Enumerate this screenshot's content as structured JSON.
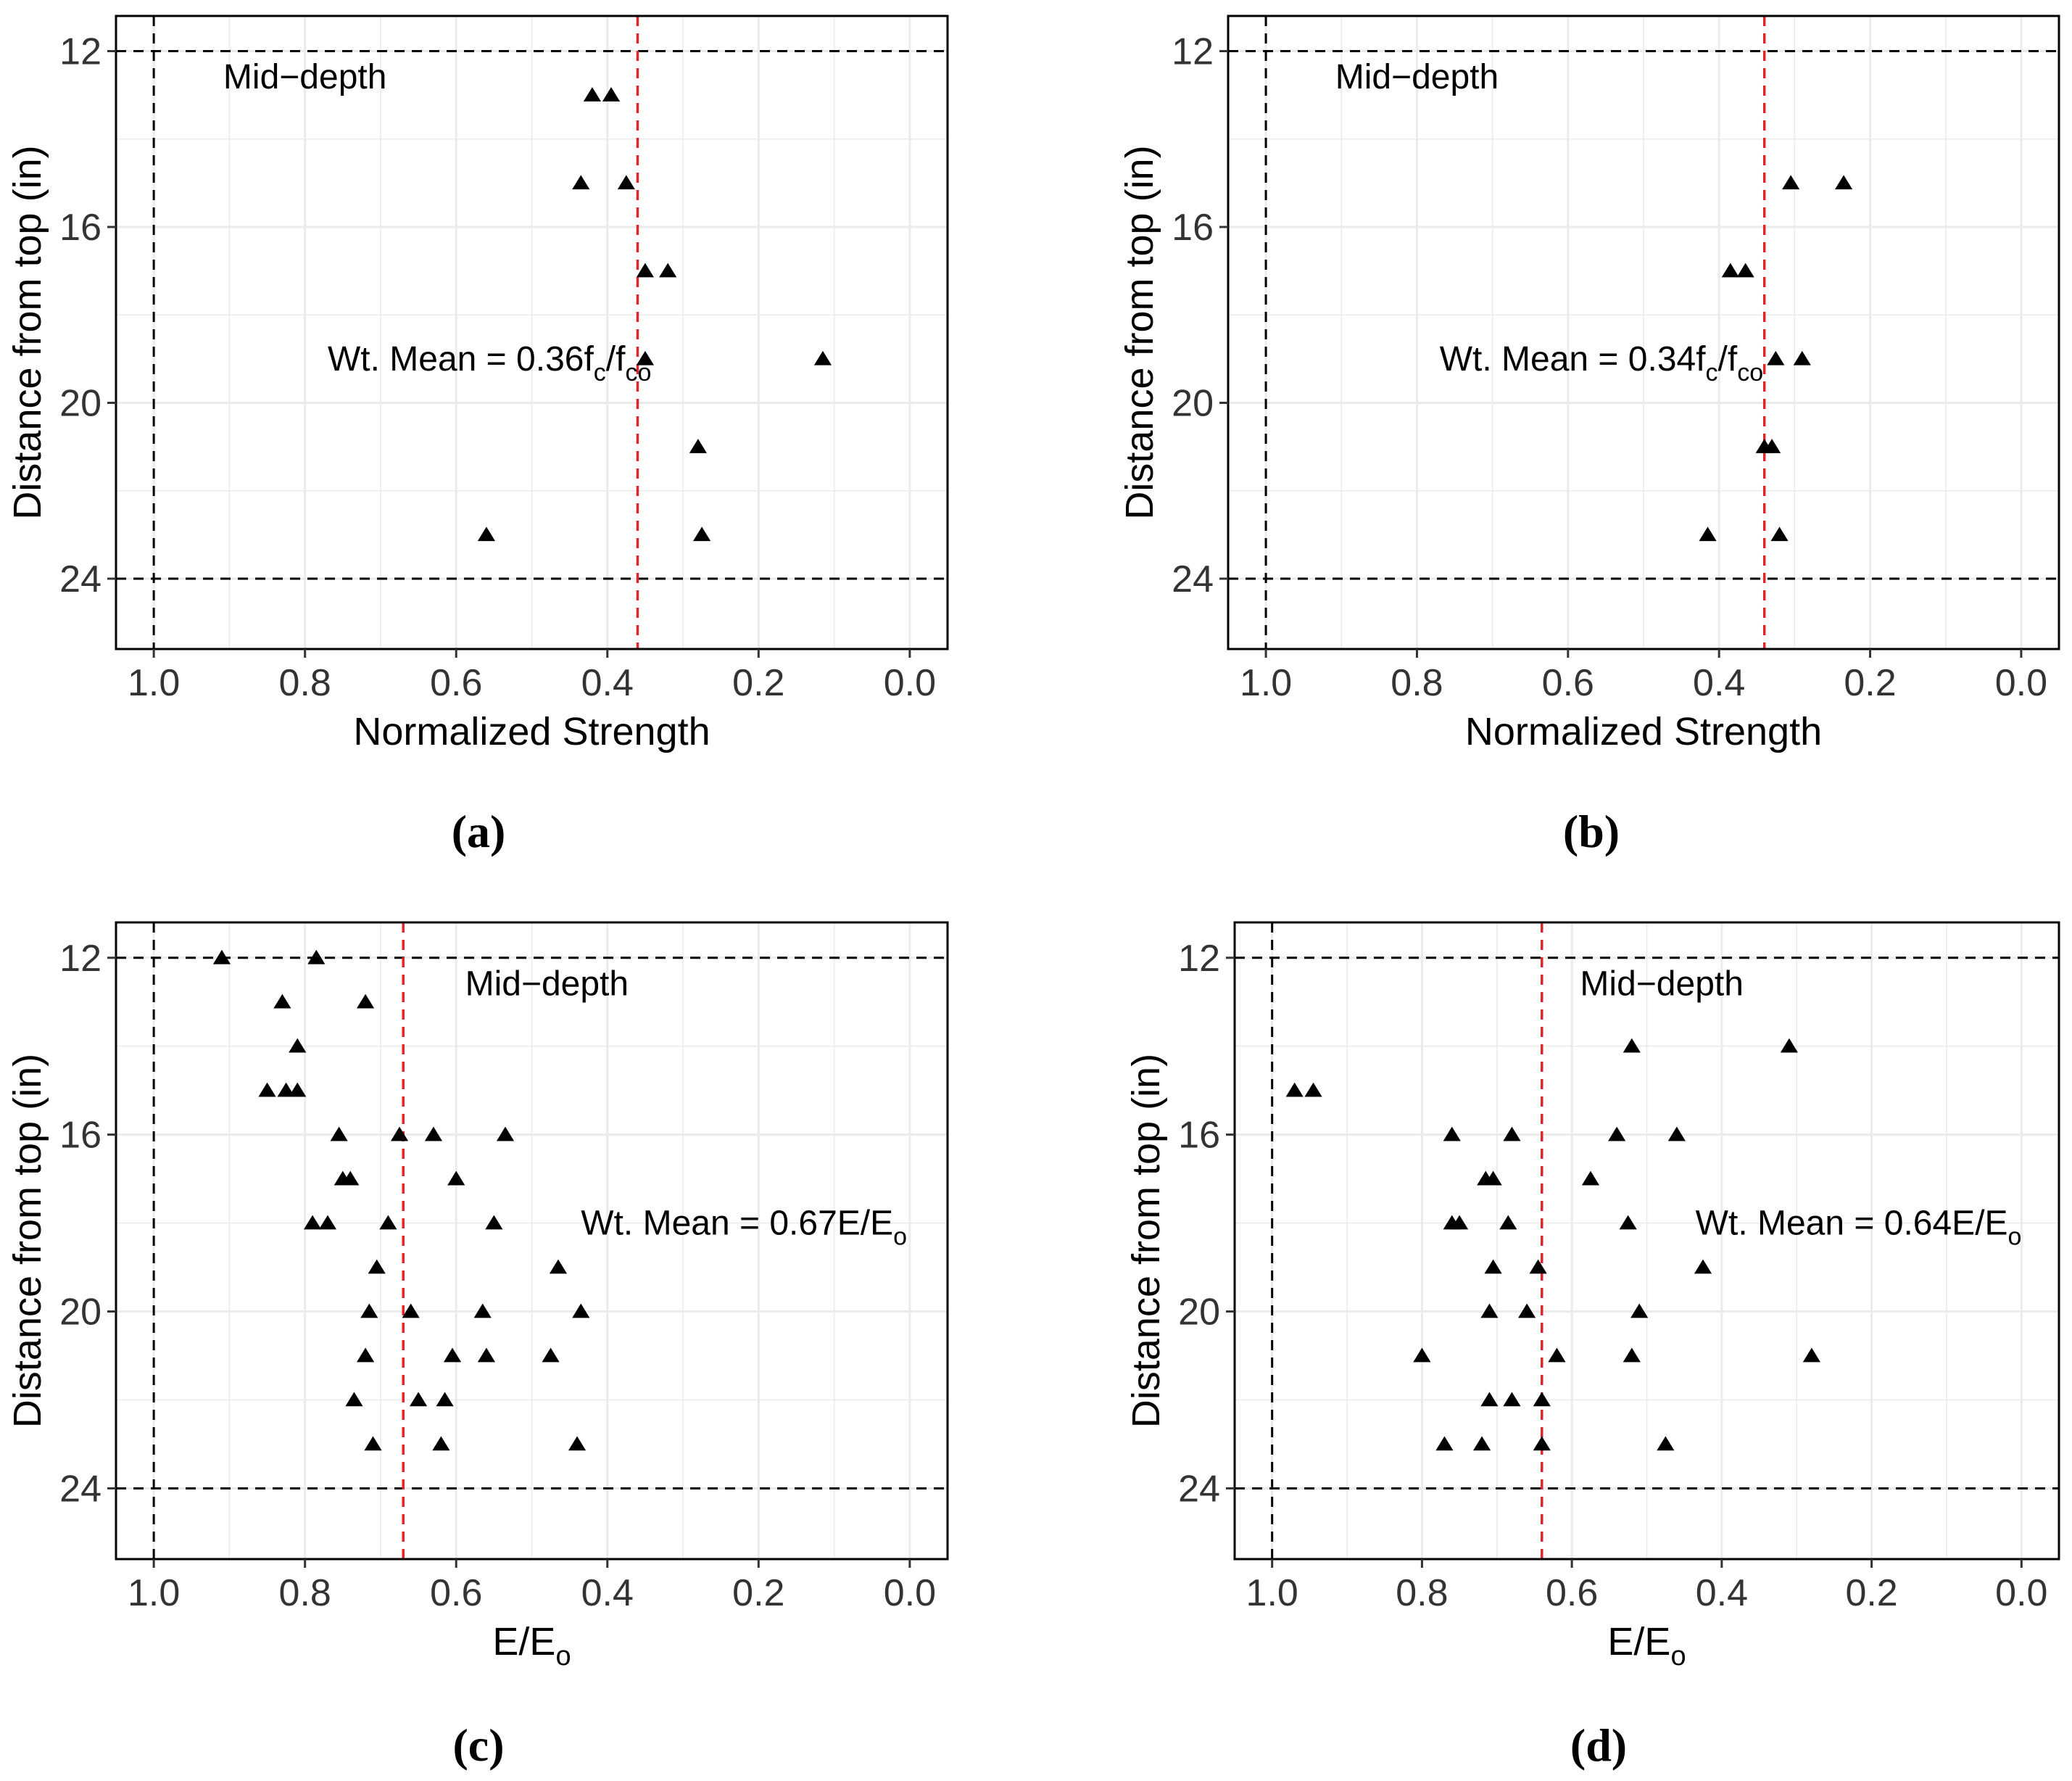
{
  "chart_data": [
    {
      "type": "scatter",
      "panel_label": "(a)",
      "xlabel": "Normalized Strength",
      "ylabel": "Distance from top (in)",
      "xlim": [
        1.05,
        -0.05
      ],
      "ylim": [
        25.6,
        11.2
      ],
      "x_reversed": true,
      "y_reversed": true,
      "x_ticks": [
        "1.0",
        "0.8",
        "0.6",
        "0.4",
        "0.2",
        "0.0"
      ],
      "x_tick_values": [
        1.0,
        0.8,
        0.6,
        0.4,
        0.2,
        0.0
      ],
      "y_ticks": [
        "12",
        "16",
        "20",
        "24"
      ],
      "y_tick_values": [
        12,
        16,
        20,
        24
      ],
      "grid": true,
      "marker": "triangle",
      "reference_lines": {
        "vertical": [
          1.0
        ],
        "horizontal": [
          12,
          24
        ]
      },
      "mean_line": 0.36,
      "mean_color": "#e0262b",
      "annotations": {
        "mid_depth": {
          "text": "Mid−depth",
          "x": 0.8,
          "y": 12.55
        },
        "mean": {
          "prefix": "Wt. Mean = 0.36f",
          "sub1": "c",
          "sep": "/f",
          "sub2": "co",
          "x": 0.77,
          "y": 19.0
        }
      },
      "points": [
        {
          "x": 0.42,
          "y": 13
        },
        {
          "x": 0.395,
          "y": 13
        },
        {
          "x": 0.435,
          "y": 15
        },
        {
          "x": 0.375,
          "y": 15
        },
        {
          "x": 0.35,
          "y": 17
        },
        {
          "x": 0.32,
          "y": 17
        },
        {
          "x": 0.35,
          "y": 19
        },
        {
          "x": 0.115,
          "y": 19
        },
        {
          "x": 0.28,
          "y": 21
        },
        {
          "x": 0.56,
          "y": 23
        },
        {
          "x": 0.275,
          "y": 23
        }
      ]
    },
    {
      "type": "scatter",
      "panel_label": "(b)",
      "xlabel": "Normalized Strength",
      "ylabel": "Distance from top (in)",
      "xlim": [
        1.05,
        -0.05
      ],
      "ylim": [
        25.6,
        11.2
      ],
      "x_reversed": true,
      "y_reversed": true,
      "x_ticks": [
        "1.0",
        "0.8",
        "0.6",
        "0.4",
        "0.2",
        "0.0"
      ],
      "x_tick_values": [
        1.0,
        0.8,
        0.6,
        0.4,
        0.2,
        0.0
      ],
      "y_ticks": [
        "12",
        "16",
        "20",
        "24"
      ],
      "y_tick_values": [
        12,
        16,
        20,
        24
      ],
      "grid": true,
      "marker": "triangle",
      "reference_lines": {
        "vertical": [
          1.0
        ],
        "horizontal": [
          12,
          24
        ]
      },
      "mean_line": 0.34,
      "mean_color": "#e0262b",
      "annotations": {
        "mid_depth": {
          "text": "Mid−depth",
          "x": 0.8,
          "y": 12.55
        },
        "mean": {
          "prefix": "Wt. Mean = 0.34f",
          "sub1": "c",
          "sep": "/f",
          "sub2": "co",
          "x": 0.77,
          "y": 19.0
        }
      },
      "points": [
        {
          "x": 0.305,
          "y": 15
        },
        {
          "x": 0.235,
          "y": 15
        },
        {
          "x": 0.385,
          "y": 17
        },
        {
          "x": 0.365,
          "y": 17
        },
        {
          "x": 0.325,
          "y": 19
        },
        {
          "x": 0.29,
          "y": 19
        },
        {
          "x": 0.34,
          "y": 21
        },
        {
          "x": 0.33,
          "y": 21
        },
        {
          "x": 0.415,
          "y": 23
        },
        {
          "x": 0.32,
          "y": 23
        }
      ]
    },
    {
      "type": "scatter",
      "panel_label": "(c)",
      "xlabel": "E/E",
      "xlabel_sub": "o",
      "ylabel": "Distance from top (in)",
      "xlim": [
        1.05,
        -0.05
      ],
      "ylim": [
        25.6,
        11.2
      ],
      "x_reversed": true,
      "y_reversed": true,
      "x_ticks": [
        "1.0",
        "0.8",
        "0.6",
        "0.4",
        "0.2",
        "0.0"
      ],
      "x_tick_values": [
        1.0,
        0.8,
        0.6,
        0.4,
        0.2,
        0.0
      ],
      "y_ticks": [
        "12",
        "16",
        "20",
        "24"
      ],
      "y_tick_values": [
        12,
        16,
        20,
        24
      ],
      "grid": true,
      "marker": "triangle",
      "reference_lines": {
        "vertical": [
          1.0
        ],
        "horizontal": [
          12,
          24
        ]
      },
      "mean_line": 0.67,
      "mean_color": "#e0262b",
      "annotations": {
        "mid_depth": {
          "text": "Mid−depth",
          "x": 0.48,
          "y": 12.55
        },
        "mean": {
          "prefix": "Wt. Mean = 0.67E/E",
          "sub1": "o",
          "sep": "",
          "sub2": "",
          "x": 0.435,
          "y": 18.0
        }
      },
      "points": [
        {
          "x": 0.91,
          "y": 12
        },
        {
          "x": 0.785,
          "y": 12
        },
        {
          "x": 0.83,
          "y": 13
        },
        {
          "x": 0.72,
          "y": 13
        },
        {
          "x": 0.81,
          "y": 14
        },
        {
          "x": 0.85,
          "y": 15
        },
        {
          "x": 0.825,
          "y": 15
        },
        {
          "x": 0.81,
          "y": 15
        },
        {
          "x": 0.755,
          "y": 16
        },
        {
          "x": 0.675,
          "y": 16
        },
        {
          "x": 0.63,
          "y": 16
        },
        {
          "x": 0.535,
          "y": 16
        },
        {
          "x": 0.75,
          "y": 17
        },
        {
          "x": 0.74,
          "y": 17
        },
        {
          "x": 0.6,
          "y": 17
        },
        {
          "x": 0.79,
          "y": 18
        },
        {
          "x": 0.77,
          "y": 18
        },
        {
          "x": 0.69,
          "y": 18
        },
        {
          "x": 0.55,
          "y": 18
        },
        {
          "x": 0.705,
          "y": 19
        },
        {
          "x": 0.465,
          "y": 19
        },
        {
          "x": 0.715,
          "y": 20
        },
        {
          "x": 0.66,
          "y": 20
        },
        {
          "x": 0.565,
          "y": 20
        },
        {
          "x": 0.435,
          "y": 20
        },
        {
          "x": 0.72,
          "y": 21
        },
        {
          "x": 0.605,
          "y": 21
        },
        {
          "x": 0.56,
          "y": 21
        },
        {
          "x": 0.475,
          "y": 21
        },
        {
          "x": 0.735,
          "y": 22
        },
        {
          "x": 0.65,
          "y": 22
        },
        {
          "x": 0.615,
          "y": 22
        },
        {
          "x": 0.71,
          "y": 23
        },
        {
          "x": 0.62,
          "y": 23
        },
        {
          "x": 0.44,
          "y": 23
        }
      ]
    },
    {
      "type": "scatter",
      "panel_label": "(d)",
      "xlabel": "E/E",
      "xlabel_sub": "o",
      "ylabel": "Distance from top (in)",
      "xlim": [
        1.05,
        -0.05
      ],
      "ylim": [
        25.6,
        11.2
      ],
      "x_reversed": true,
      "y_reversed": true,
      "x_ticks": [
        "1.0",
        "0.8",
        "0.6",
        "0.4",
        "0.2",
        "0.0"
      ],
      "x_tick_values": [
        1.0,
        0.8,
        0.6,
        0.4,
        0.2,
        0.0
      ],
      "y_ticks": [
        "12",
        "16",
        "20",
        "24"
      ],
      "y_tick_values": [
        12,
        16,
        20,
        24
      ],
      "grid": true,
      "marker": "triangle",
      "reference_lines": {
        "vertical": [
          1.0
        ],
        "horizontal": [
          12,
          24
        ]
      },
      "mean_line": 0.64,
      "mean_color": "#e0262b",
      "annotations": {
        "mid_depth": {
          "text": "Mid−depth",
          "x": 0.48,
          "y": 12.55
        },
        "mean": {
          "prefix": "Wt. Mean = 0.64E/E",
          "sub1": "o",
          "sep": "",
          "sub2": "",
          "x": 0.435,
          "y": 18.0
        }
      },
      "points": [
        {
          "x": 0.52,
          "y": 14
        },
        {
          "x": 0.31,
          "y": 14
        },
        {
          "x": 0.97,
          "y": 15
        },
        {
          "x": 0.945,
          "y": 15
        },
        {
          "x": 0.76,
          "y": 16
        },
        {
          "x": 0.68,
          "y": 16
        },
        {
          "x": 0.54,
          "y": 16
        },
        {
          "x": 0.46,
          "y": 16
        },
        {
          "x": 0.715,
          "y": 17
        },
        {
          "x": 0.705,
          "y": 17
        },
        {
          "x": 0.575,
          "y": 17
        },
        {
          "x": 0.76,
          "y": 18
        },
        {
          "x": 0.75,
          "y": 18
        },
        {
          "x": 0.685,
          "y": 18
        },
        {
          "x": 0.525,
          "y": 18
        },
        {
          "x": 0.705,
          "y": 19
        },
        {
          "x": 0.645,
          "y": 19
        },
        {
          "x": 0.425,
          "y": 19
        },
        {
          "x": 0.71,
          "y": 20
        },
        {
          "x": 0.66,
          "y": 20
        },
        {
          "x": 0.51,
          "y": 20
        },
        {
          "x": 0.8,
          "y": 21
        },
        {
          "x": 0.62,
          "y": 21
        },
        {
          "x": 0.52,
          "y": 21
        },
        {
          "x": 0.28,
          "y": 21
        },
        {
          "x": 0.71,
          "y": 22
        },
        {
          "x": 0.68,
          "y": 22
        },
        {
          "x": 0.64,
          "y": 22
        },
        {
          "x": 0.77,
          "y": 23
        },
        {
          "x": 0.72,
          "y": 23
        },
        {
          "x": 0.64,
          "y": 23
        },
        {
          "x": 0.475,
          "y": 23
        }
      ]
    }
  ]
}
